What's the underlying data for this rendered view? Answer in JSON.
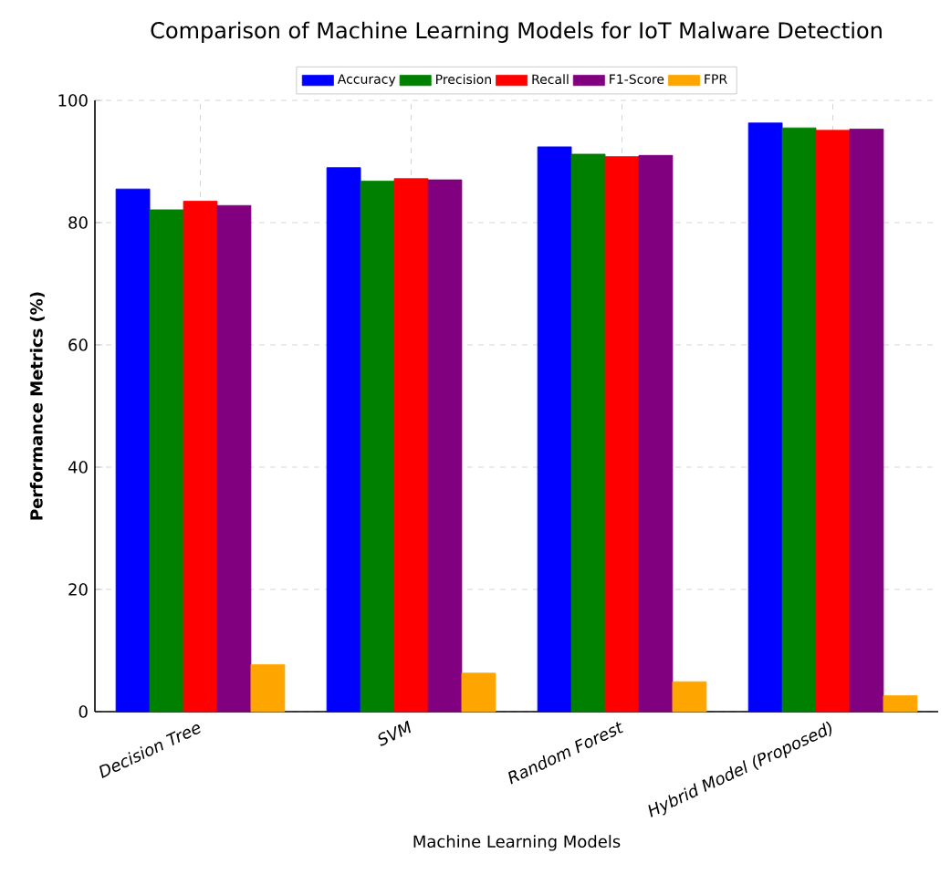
{
  "chart_data": {
    "type": "bar",
    "title": "Comparison of Machine Learning Models for IoT Malware Detection",
    "xlabel": "Machine Learning Models",
    "ylabel": "Performance Metrics (%)",
    "categories": [
      "Decision Tree",
      "SVM",
      "Random Forest",
      "Hybrid Model (Proposed)"
    ],
    "series": [
      {
        "name": "Accuracy",
        "color": "#0000ff",
        "values": [
          85.5,
          89.0,
          92.4,
          96.3
        ]
      },
      {
        "name": "Precision",
        "color": "#008000",
        "values": [
          82.1,
          86.8,
          91.2,
          95.5
        ]
      },
      {
        "name": "Recall",
        "color": "#ff0000",
        "values": [
          83.5,
          87.2,
          90.8,
          95.1
        ]
      },
      {
        "name": "F1-Score",
        "color": "#800080",
        "values": [
          82.8,
          87.0,
          91.0,
          95.3
        ]
      },
      {
        "name": "FPR",
        "color": "#ffa500",
        "values": [
          7.7,
          6.3,
          4.9,
          2.6
        ]
      }
    ],
    "ylim": [
      0,
      100
    ],
    "yticks": [
      0,
      20,
      40,
      60,
      80,
      100
    ],
    "grid": true,
    "legend": "top"
  }
}
